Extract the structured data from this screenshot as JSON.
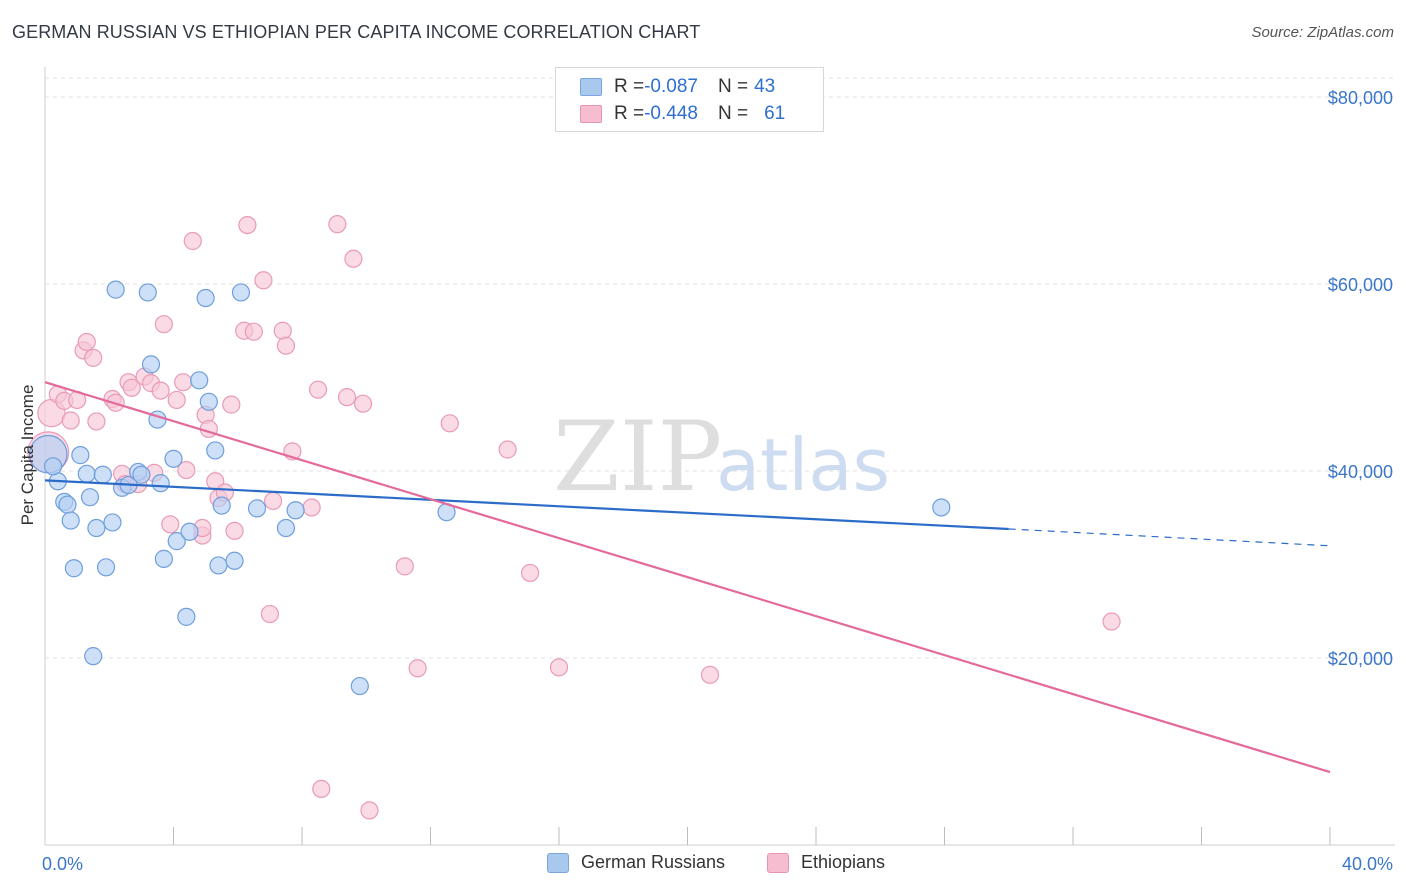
{
  "title": "GERMAN RUSSIAN VS ETHIOPIAN PER CAPITA INCOME CORRELATION CHART",
  "source": "Source: ZipAtlas.com",
  "watermark": {
    "zip": "ZIP",
    "atlas": "atlas"
  },
  "legend_stats": [
    {
      "r_label": "R = ",
      "r_value": "-0.087",
      "n_label": "N = ",
      "n_value": "43",
      "color": "#a9c8ee",
      "stroke": "#7aa6dd"
    },
    {
      "r_label": "R = ",
      "r_value": "-0.448",
      "n_label": "N = ",
      "n_value": "61",
      "color": "#f6bdd0",
      "stroke": "#e895b2"
    }
  ],
  "colors": {
    "blue_fill": "#b4d0f2",
    "blue_stroke": "#6f9fdc",
    "blue_line": "#2c6cc9",
    "pink_fill": "#f7c6d6",
    "pink_stroke": "#e99bb7",
    "pink_line": "#e36a9a",
    "tick_text": "#3b77c9",
    "grid": "#e2e2e2"
  },
  "chart_data": {
    "type": "scatter",
    "title": "GERMAN RUSSIAN VS ETHIOPIAN PER CAPITA INCOME CORRELATION CHART",
    "xlabel": "",
    "ylabel": "Per Capita Income",
    "xlim": [
      0,
      40
    ],
    "ylim": [
      0,
      80000
    ],
    "x_tick_labels": [
      "0.0%",
      "40.0%"
    ],
    "y_ticks": [
      20000,
      40000,
      60000,
      80000
    ],
    "y_tick_labels": [
      "$20,000",
      "$40,000",
      "$60,000",
      "$80,000"
    ],
    "grid": true,
    "legend_position": "top-center and bottom",
    "series": [
      {
        "name": "German Russians",
        "trend": {
          "x0": 0,
          "y0": 39000,
          "x1": 30,
          "y1": 33800,
          "dashed_to_x": 40,
          "dashed_to_y": 32000
        },
        "points": [
          [
            0.1,
            41800,
            2.2
          ],
          [
            0.4,
            38900,
            1
          ],
          [
            0.6,
            36700,
            1
          ],
          [
            0.7,
            36400,
            1
          ],
          [
            0.8,
            34700,
            1
          ],
          [
            0.9,
            29600,
            1
          ],
          [
            1.1,
            41700,
            1
          ],
          [
            1.3,
            39700,
            1
          ],
          [
            1.4,
            37200,
            1
          ],
          [
            1.5,
            20200,
            1
          ],
          [
            1.6,
            33900,
            1
          ],
          [
            1.8,
            39600,
            1
          ],
          [
            1.9,
            29700,
            1
          ],
          [
            2.1,
            34500,
            1
          ],
          [
            2.2,
            59400,
            1
          ],
          [
            2.4,
            38200,
            1
          ],
          [
            2.6,
            38500,
            1
          ],
          [
            2.9,
            39900,
            1
          ],
          [
            3.0,
            39600,
            1
          ],
          [
            3.2,
            59100,
            1
          ],
          [
            3.3,
            51400,
            1
          ],
          [
            3.5,
            45500,
            1
          ],
          [
            3.6,
            38700,
            1
          ],
          [
            3.7,
            30600,
            1
          ],
          [
            4.0,
            41300,
            1
          ],
          [
            4.1,
            32500,
            1
          ],
          [
            4.4,
            24400,
            1
          ],
          [
            4.5,
            33500,
            1
          ],
          [
            4.8,
            49700,
            1
          ],
          [
            5.0,
            58500,
            1
          ],
          [
            5.1,
            47400,
            1
          ],
          [
            5.3,
            42200,
            1
          ],
          [
            5.4,
            29900,
            1
          ],
          [
            5.5,
            36300,
            1
          ],
          [
            5.9,
            30400,
            1
          ],
          [
            6.1,
            59100,
            1
          ],
          [
            6.6,
            36000,
            1
          ],
          [
            7.5,
            33900,
            1
          ],
          [
            7.8,
            35800,
            1
          ],
          [
            9.8,
            17000,
            1
          ],
          [
            12.5,
            35600,
            1
          ],
          [
            27.9,
            36100,
            1
          ],
          [
            0.25,
            40500,
            1
          ]
        ]
      },
      {
        "name": "Ethiopians",
        "trend": {
          "x0": 0,
          "y0": 49500,
          "x1": 40,
          "y1": 7800
        },
        "points": [
          [
            0.1,
            42000,
            2.4
          ],
          [
            0.2,
            46200,
            1.6
          ],
          [
            0.4,
            48200,
            1
          ],
          [
            0.6,
            47500,
            1
          ],
          [
            0.8,
            45400,
            1
          ],
          [
            1.0,
            47600,
            1
          ],
          [
            1.2,
            52900,
            1
          ],
          [
            1.3,
            53800,
            1
          ],
          [
            1.5,
            52100,
            1
          ],
          [
            1.6,
            45300,
            1
          ],
          [
            2.1,
            47700,
            1
          ],
          [
            2.2,
            47300,
            1
          ],
          [
            2.4,
            39700,
            1
          ],
          [
            2.5,
            38600,
            1
          ],
          [
            2.6,
            49500,
            1
          ],
          [
            2.7,
            48900,
            1
          ],
          [
            2.9,
            38600,
            1
          ],
          [
            3.1,
            50100,
            1
          ],
          [
            3.3,
            49400,
            1
          ],
          [
            3.4,
            39800,
            1
          ],
          [
            3.6,
            48600,
            1
          ],
          [
            3.7,
            55700,
            1
          ],
          [
            3.9,
            34300,
            1
          ],
          [
            4.1,
            47600,
            1
          ],
          [
            4.3,
            49500,
            1
          ],
          [
            4.4,
            40100,
            1
          ],
          [
            4.6,
            64600,
            1
          ],
          [
            4.9,
            33100,
            1
          ],
          [
            5.0,
            46000,
            1
          ],
          [
            5.1,
            44500,
            1
          ],
          [
            5.3,
            38900,
            1
          ],
          [
            5.4,
            37100,
            1
          ],
          [
            5.6,
            37700,
            1
          ],
          [
            5.8,
            47100,
            1
          ],
          [
            5.9,
            33600,
            1
          ],
          [
            6.2,
            55000,
            1
          ],
          [
            6.3,
            66300,
            1
          ],
          [
            6.5,
            54900,
            1
          ],
          [
            6.8,
            60400,
            1
          ],
          [
            7.0,
            24700,
            1
          ],
          [
            7.1,
            36800,
            1
          ],
          [
            7.4,
            55000,
            1
          ],
          [
            7.5,
            53400,
            1
          ],
          [
            7.7,
            42100,
            1
          ],
          [
            8.3,
            36100,
            1
          ],
          [
            8.5,
            48700,
            1
          ],
          [
            9.1,
            66400,
            1
          ],
          [
            9.4,
            47900,
            1
          ],
          [
            9.6,
            62700,
            1
          ],
          [
            9.9,
            47200,
            1
          ],
          [
            11.2,
            29800,
            1
          ],
          [
            11.6,
            18900,
            1
          ],
          [
            12.6,
            45100,
            1
          ],
          [
            14.4,
            42300,
            1
          ],
          [
            15.1,
            29100,
            1
          ],
          [
            16.0,
            19000,
            1
          ],
          [
            20.7,
            18200,
            1
          ],
          [
            33.2,
            23900,
            1
          ],
          [
            8.6,
            6000,
            1
          ],
          [
            10.1,
            3700,
            1
          ],
          [
            4.9,
            33900,
            1
          ]
        ]
      }
    ]
  }
}
